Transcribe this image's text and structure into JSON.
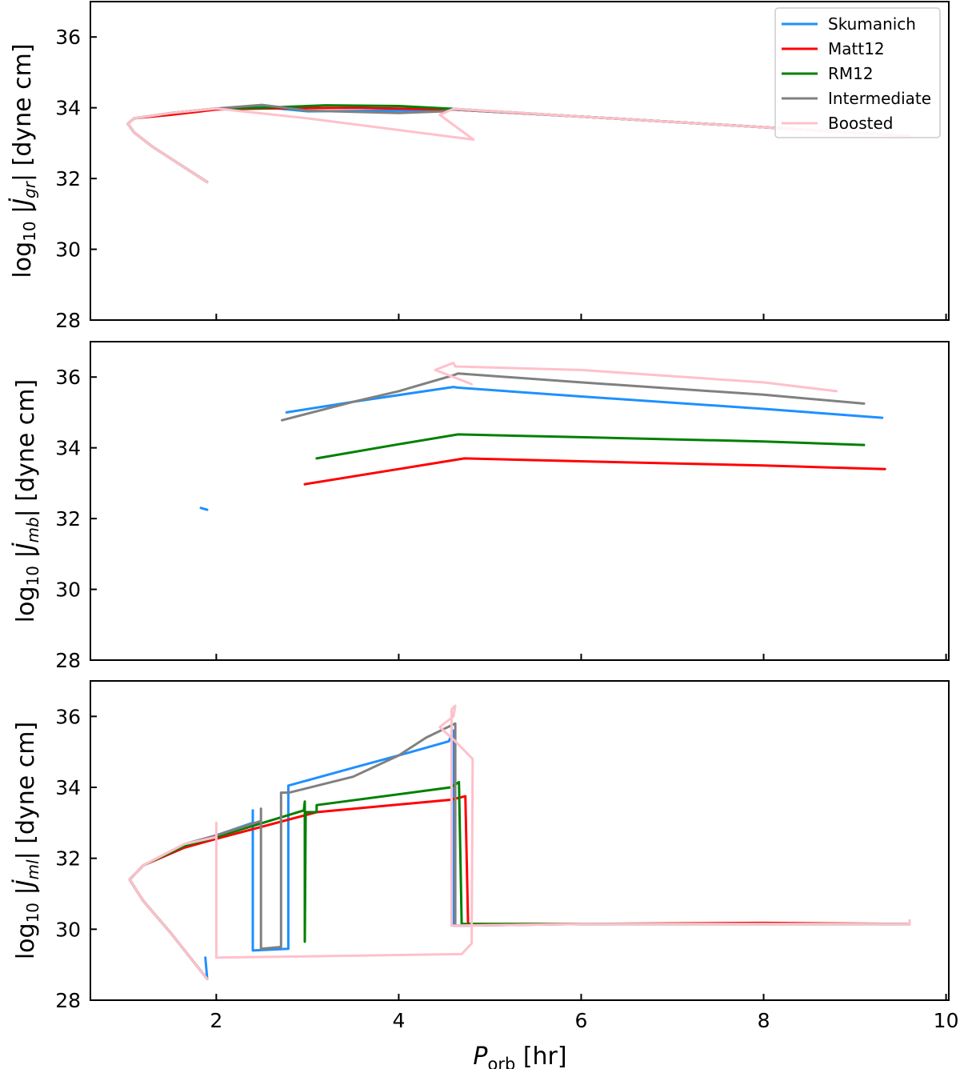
{
  "chart_data": {
    "type": "line",
    "xlabel": {
      "main": "P",
      "sub": "orb",
      "suffix": " [hr]"
    },
    "xlim": [
      0.62,
      10.03
    ],
    "xticks": [
      2,
      4,
      6,
      8,
      10
    ],
    "legend": {
      "placement": "top-right",
      "panel": 0
    },
    "series_styles": [
      {
        "name": "Skumanich",
        "color": "#1e90ff"
      },
      {
        "name": "Matt12",
        "color": "#ff0000"
      },
      {
        "name": "RM12",
        "color": "#008000"
      },
      {
        "name": "Intermediate",
        "color": "#808080"
      },
      {
        "name": "Boosted",
        "color": "#ffc0cb"
      }
    ],
    "panels": [
      {
        "ylabel": {
          "pre": "log",
          "sub1": "10",
          "mid": " |J̇",
          "sub2": "gr",
          "post": "| [dyne cm]"
        },
        "ylim": [
          28,
          37
        ],
        "yticks": [
          28,
          30,
          32,
          34,
          36
        ],
        "series": [
          {
            "name": "Skumanich",
            "points": [
              [
                1.9,
                31.9
              ],
              [
                1.6,
                32.4
              ],
              [
                1.3,
                32.9
              ],
              [
                1.1,
                33.3
              ],
              [
                1.03,
                33.55
              ],
              [
                1.1,
                33.7
              ],
              [
                1.5,
                33.85
              ],
              [
                2.0,
                33.98
              ],
              [
                2.5,
                34.02
              ],
              [
                3.0,
                33.9
              ],
              [
                4.0,
                33.92
              ],
              [
                4.6,
                33.95
              ],
              [
                6,
                33.75
              ],
              [
                8,
                33.45
              ],
              [
                9.6,
                33.2
              ]
            ]
          },
          {
            "name": "Matt12",
            "points": [
              [
                1.9,
                31.9
              ],
              [
                1.6,
                32.4
              ],
              [
                1.3,
                32.9
              ],
              [
                1.1,
                33.3
              ],
              [
                1.03,
                33.55
              ],
              [
                1.1,
                33.7
              ],
              [
                1.5,
                33.8
              ],
              [
                2.0,
                33.95
              ],
              [
                2.5,
                33.98
              ],
              [
                3.5,
                34.0
              ],
              [
                4.6,
                33.95
              ],
              [
                6,
                33.75
              ],
              [
                8,
                33.45
              ],
              [
                9.6,
                33.2
              ]
            ]
          },
          {
            "name": "RM12",
            "points": [
              [
                1.9,
                31.9
              ],
              [
                1.6,
                32.4
              ],
              [
                1.3,
                32.9
              ],
              [
                1.1,
                33.3
              ],
              [
                1.03,
                33.55
              ],
              [
                1.1,
                33.7
              ],
              [
                1.5,
                33.85
              ],
              [
                2.0,
                33.98
              ],
              [
                2.5,
                34.0
              ],
              [
                3.2,
                34.07
              ],
              [
                4.0,
                34.05
              ],
              [
                4.6,
                33.97
              ],
              [
                6,
                33.75
              ],
              [
                8,
                33.45
              ],
              [
                9.6,
                33.2
              ]
            ]
          },
          {
            "name": "Intermediate",
            "points": [
              [
                1.9,
                31.9
              ],
              [
                1.6,
                32.4
              ],
              [
                1.3,
                32.9
              ],
              [
                1.1,
                33.3
              ],
              [
                1.03,
                33.55
              ],
              [
                1.1,
                33.7
              ],
              [
                1.5,
                33.85
              ],
              [
                2.0,
                33.98
              ],
              [
                2.5,
                34.08
              ],
              [
                3.0,
                33.92
              ],
              [
                4.0,
                33.85
              ],
              [
                4.5,
                33.9
              ],
              [
                4.6,
                33.95
              ],
              [
                6,
                33.75
              ],
              [
                8,
                33.45
              ],
              [
                9.6,
                33.2
              ]
            ]
          },
          {
            "name": "Boosted",
            "points": [
              [
                1.9,
                31.9
              ],
              [
                1.6,
                32.4
              ],
              [
                1.3,
                32.9
              ],
              [
                1.1,
                33.3
              ],
              [
                1.03,
                33.55
              ],
              [
                1.1,
                33.7
              ],
              [
                1.5,
                33.85
              ],
              [
                2.0,
                33.98
              ],
              [
                3.0,
                33.7
              ],
              [
                4.82,
                33.1
              ],
              [
                4.45,
                33.8
              ],
              [
                4.6,
                33.97
              ],
              [
                6,
                33.75
              ],
              [
                8,
                33.45
              ],
              [
                9.6,
                33.2
              ]
            ]
          }
        ]
      },
      {
        "ylabel": {
          "pre": "log",
          "sub1": "10",
          "mid": " |J̇",
          "sub2": "mb",
          "post": "| [dyne cm]"
        },
        "ylim": [
          28,
          37
        ],
        "yticks": [
          28,
          30,
          32,
          34,
          36
        ],
        "series": [
          {
            "name": "Skumanich",
            "points": [
              [
                2.77,
                35.0
              ],
              [
                3.5,
                35.3
              ],
              [
                4.6,
                35.72
              ],
              [
                4.65,
                35.7
              ],
              [
                6,
                35.45
              ],
              [
                8,
                35.1
              ],
              [
                9.3,
                34.85
              ]
            ],
            "extra": [
              [
                1.83,
                32.3
              ],
              [
                1.9,
                32.25
              ]
            ]
          },
          {
            "name": "Matt12",
            "points": [
              [
                2.97,
                32.97
              ],
              [
                4.0,
                33.4
              ],
              [
                4.72,
                33.7
              ],
              [
                6,
                33.62
              ],
              [
                8,
                33.5
              ],
              [
                9.33,
                33.4
              ]
            ]
          },
          {
            "name": "RM12",
            "points": [
              [
                3.1,
                33.7
              ],
              [
                4.0,
                34.1
              ],
              [
                4.65,
                34.38
              ],
              [
                6,
                34.3
              ],
              [
                8,
                34.18
              ],
              [
                9.1,
                34.08
              ]
            ]
          },
          {
            "name": "Intermediate",
            "points": [
              [
                2.72,
                34.78
              ],
              [
                3.5,
                35.3
              ],
              [
                4.0,
                35.6
              ],
              [
                4.6,
                36.05
              ],
              [
                4.65,
                36.1
              ],
              [
                6,
                35.85
              ],
              [
                8,
                35.5
              ],
              [
                9.1,
                35.25
              ]
            ]
          },
          {
            "name": "Boosted",
            "points": [
              [
                4.8,
                35.8
              ],
              [
                4.4,
                36.2
              ],
              [
                4.6,
                36.4
              ],
              [
                4.62,
                36.3
              ],
              [
                6,
                36.2
              ],
              [
                8,
                35.85
              ],
              [
                8.8,
                35.6
              ]
            ]
          }
        ]
      },
      {
        "ylabel": {
          "pre": "log",
          "sub1": "10",
          "mid": " |J̇",
          "sub2": "ml",
          "post": "| [dyne cm]"
        },
        "ylim": [
          28,
          37
        ],
        "yticks": [
          28,
          30,
          32,
          34,
          36
        ],
        "series": [
          {
            "name": "Skumanich",
            "points": [
              [
                1.9,
                28.6
              ],
              [
                1.5,
                29.9
              ],
              [
                1.2,
                30.8
              ],
              [
                1.05,
                31.4
              ],
              [
                1.2,
                31.8
              ],
              [
                1.65,
                32.35
              ],
              [
                2.0,
                32.65
              ],
              [
                2.4,
                33.0
              ],
              [
                2.4,
                33.35
              ],
              [
                2.4,
                29.4
              ],
              [
                2.79,
                29.45
              ],
              [
                2.79,
                34.05
              ],
              [
                3.5,
                34.55
              ],
              [
                4.0,
                34.9
              ],
              [
                4.55,
                35.3
              ],
              [
                4.6,
                35.6
              ],
              [
                4.6,
                30.1
              ],
              [
                6,
                30.15
              ],
              [
                8,
                30.15
              ],
              [
                9.6,
                30.15
              ]
            ],
            "extra": [
              [
                1.88,
                29.2
              ],
              [
                1.9,
                28.6
              ]
            ]
          },
          {
            "name": "Matt12",
            "points": [
              [
                1.9,
                28.6
              ],
              [
                1.5,
                29.9
              ],
              [
                1.2,
                30.8
              ],
              [
                1.05,
                31.4
              ],
              [
                1.2,
                31.8
              ],
              [
                1.65,
                32.3
              ],
              [
                2.0,
                32.55
              ],
              [
                3.1,
                33.3
              ],
              [
                4.57,
                33.65
              ],
              [
                4.73,
                33.75
              ],
              [
                4.76,
                30.15
              ],
              [
                6,
                30.15
              ],
              [
                8,
                30.18
              ],
              [
                9.6,
                30.15
              ]
            ]
          },
          {
            "name": "RM12",
            "points": [
              [
                1.9,
                28.6
              ],
              [
                1.5,
                29.9
              ],
              [
                1.2,
                30.8
              ],
              [
                1.05,
                31.4
              ],
              [
                1.2,
                31.8
              ],
              [
                1.65,
                32.35
              ],
              [
                2.0,
                32.6
              ],
              [
                2.96,
                33.35
              ],
              [
                2.97,
                33.6
              ],
              [
                2.97,
                29.65
              ],
              [
                2.98,
                33.3
              ],
              [
                3.1,
                33.3
              ],
              [
                3.1,
                33.5
              ],
              [
                4.57,
                34.0
              ],
              [
                4.66,
                34.15
              ],
              [
                4.69,
                30.15
              ],
              [
                6,
                30.15
              ],
              [
                8,
                30.15
              ],
              [
                9.6,
                30.15
              ]
            ]
          },
          {
            "name": "Intermediate",
            "points": [
              [
                1.9,
                28.6
              ],
              [
                1.5,
                29.9
              ],
              [
                1.2,
                30.8
              ],
              [
                1.05,
                31.4
              ],
              [
                1.2,
                31.8
              ],
              [
                1.65,
                32.4
              ],
              [
                2.0,
                32.65
              ],
              [
                2.49,
                33.05
              ],
              [
                2.49,
                33.4
              ],
              [
                2.49,
                29.45
              ],
              [
                2.71,
                29.5
              ],
              [
                2.71,
                33.85
              ],
              [
                2.8,
                33.85
              ],
              [
                3.5,
                34.3
              ],
              [
                4.0,
                34.9
              ],
              [
                4.3,
                35.4
              ],
              [
                4.62,
                35.8
              ],
              [
                4.62,
                30.1
              ],
              [
                6,
                30.15
              ],
              [
                8,
                30.15
              ],
              [
                9.6,
                30.15
              ]
            ]
          },
          {
            "name": "Boosted",
            "points": [
              [
                1.9,
                28.6
              ],
              [
                1.5,
                29.9
              ],
              [
                1.2,
                30.8
              ],
              [
                1.05,
                31.4
              ],
              [
                1.2,
                31.8
              ],
              [
                1.65,
                32.4
              ],
              [
                2.0,
                32.6
              ],
              [
                2.0,
                33.0
              ],
              [
                2.0,
                29.2
              ],
              [
                4.69,
                29.3
              ],
              [
                4.8,
                29.6
              ],
              [
                4.81,
                34.8
              ],
              [
                4.6,
                35.35
              ],
              [
                4.45,
                35.7
              ],
              [
                4.6,
                36.0
              ],
              [
                4.62,
                36.3
              ],
              [
                4.58,
                36.2
              ],
              [
                4.58,
                30.1
              ],
              [
                6,
                30.15
              ],
              [
                8,
                30.15
              ],
              [
                9.6,
                30.15
              ],
              [
                9.6,
                30.25
              ]
            ]
          }
        ]
      }
    ]
  }
}
